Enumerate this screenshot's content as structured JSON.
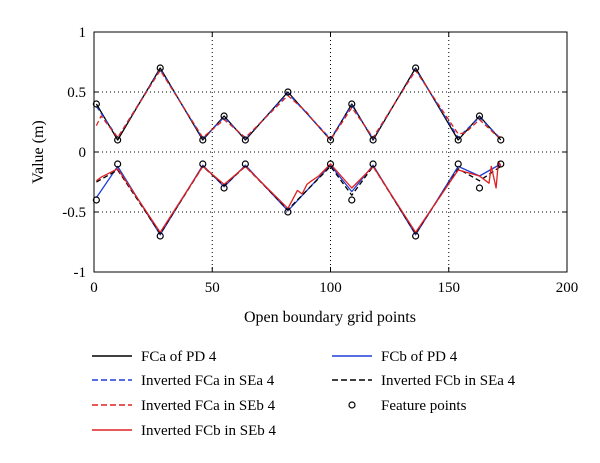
{
  "chart_data": {
    "type": "line",
    "title": "",
    "xlabel": "Open boundary grid points",
    "ylabel": "Value (m)",
    "xlim": [
      0,
      200
    ],
    "ylim": [
      -1,
      1
    ],
    "x_ticks": [
      0,
      50,
      100,
      150,
      200
    ],
    "y_ticks": [
      -1,
      -0.5,
      0,
      0.5,
      1
    ],
    "grid": "dotted",
    "legend_position": "below",
    "series": [
      {
        "name": "FCa of PD 4",
        "color": "#000000",
        "dash": "solid",
        "x": [
          1,
          10,
          28,
          46,
          55,
          64,
          82,
          100,
          109,
          118,
          136,
          154,
          163,
          172
        ],
        "y": [
          0.4,
          0.1,
          0.7,
          0.1,
          0.3,
          0.1,
          0.5,
          0.1,
          0.4,
          0.1,
          0.7,
          0.1,
          0.3,
          0.1
        ]
      },
      {
        "name": "Inverted FCa in SEa 4",
        "color": "#1f3fd6",
        "dash": "dashed",
        "x": [
          1,
          10,
          28,
          46,
          55,
          64,
          82,
          100,
          109,
          118,
          136,
          154,
          163,
          172
        ],
        "y": [
          0.38,
          0.12,
          0.69,
          0.11,
          0.29,
          0.11,
          0.49,
          0.11,
          0.39,
          0.11,
          0.69,
          0.12,
          0.29,
          0.11
        ]
      },
      {
        "name": "Inverted FCa in SEb 4",
        "color": "#e02020",
        "dash": "dashed",
        "x": [
          1,
          3,
          10,
          28,
          46,
          55,
          64,
          82,
          90,
          92,
          100,
          109,
          118,
          136,
          154,
          157,
          163,
          170,
          172
        ],
        "y": [
          0.22,
          0.3,
          0.12,
          0.68,
          0.12,
          0.27,
          0.12,
          0.47,
          0.33,
          0.28,
          0.1,
          0.37,
          0.12,
          0.68,
          0.15,
          0.16,
          0.27,
          0.14,
          0.12
        ]
      },
      {
        "name": "FCb of PD 4",
        "color": "#1f3fd6",
        "dash": "solid",
        "x": [
          1,
          10,
          28,
          46,
          55,
          64,
          82,
          100,
          109,
          118,
          136,
          154,
          163,
          172
        ],
        "y": [
          -0.38,
          -0.12,
          -0.69,
          -0.11,
          -0.29,
          -0.11,
          -0.49,
          -0.11,
          -0.33,
          -0.11,
          -0.69,
          -0.12,
          -0.2,
          -0.1
        ]
      },
      {
        "name": "Inverted FCb in SEa 4",
        "color": "#000000",
        "dash": "dashed",
        "x": [
          1,
          10,
          28,
          46,
          55,
          64,
          82,
          100,
          109,
          118,
          136,
          154,
          163,
          172
        ],
        "y": [
          -0.25,
          -0.15,
          -0.68,
          -0.12,
          -0.28,
          -0.12,
          -0.48,
          -0.12,
          -0.36,
          -0.12,
          -0.68,
          -0.14,
          -0.24,
          -0.12
        ]
      },
      {
        "name": "Inverted FCb in SEb 4",
        "color": "#e02020",
        "dash": "solid",
        "x": [
          1,
          3,
          10,
          28,
          46,
          55,
          64,
          82,
          86,
          88,
          90,
          92,
          95,
          100,
          109,
          118,
          136,
          154,
          163,
          167,
          168,
          170,
          171,
          172
        ],
        "y": [
          -0.24,
          -0.21,
          -0.14,
          -0.67,
          -0.12,
          -0.27,
          -0.12,
          -0.47,
          -0.32,
          -0.35,
          -0.27,
          -0.24,
          -0.2,
          -0.1,
          -0.3,
          -0.12,
          -0.67,
          -0.15,
          -0.2,
          -0.26,
          -0.12,
          -0.3,
          -0.08,
          -0.12
        ]
      }
    ],
    "feature_points": {
      "name": "Feature points",
      "x": [
        1,
        10,
        28,
        46,
        55,
        64,
        82,
        100,
        109,
        118,
        136,
        154,
        163,
        172,
        1,
        10,
        28,
        46,
        55,
        64,
        82,
        100,
        109,
        118,
        136,
        154,
        163,
        172
      ],
      "y": [
        0.4,
        0.1,
        0.7,
        0.1,
        0.3,
        0.1,
        0.5,
        0.1,
        0.4,
        0.1,
        0.7,
        0.1,
        0.3,
        0.1,
        -0.4,
        -0.1,
        -0.7,
        -0.1,
        -0.3,
        -0.1,
        -0.5,
        -0.1,
        -0.4,
        -0.1,
        -0.7,
        -0.1,
        -0.3,
        -0.1
      ]
    }
  }
}
